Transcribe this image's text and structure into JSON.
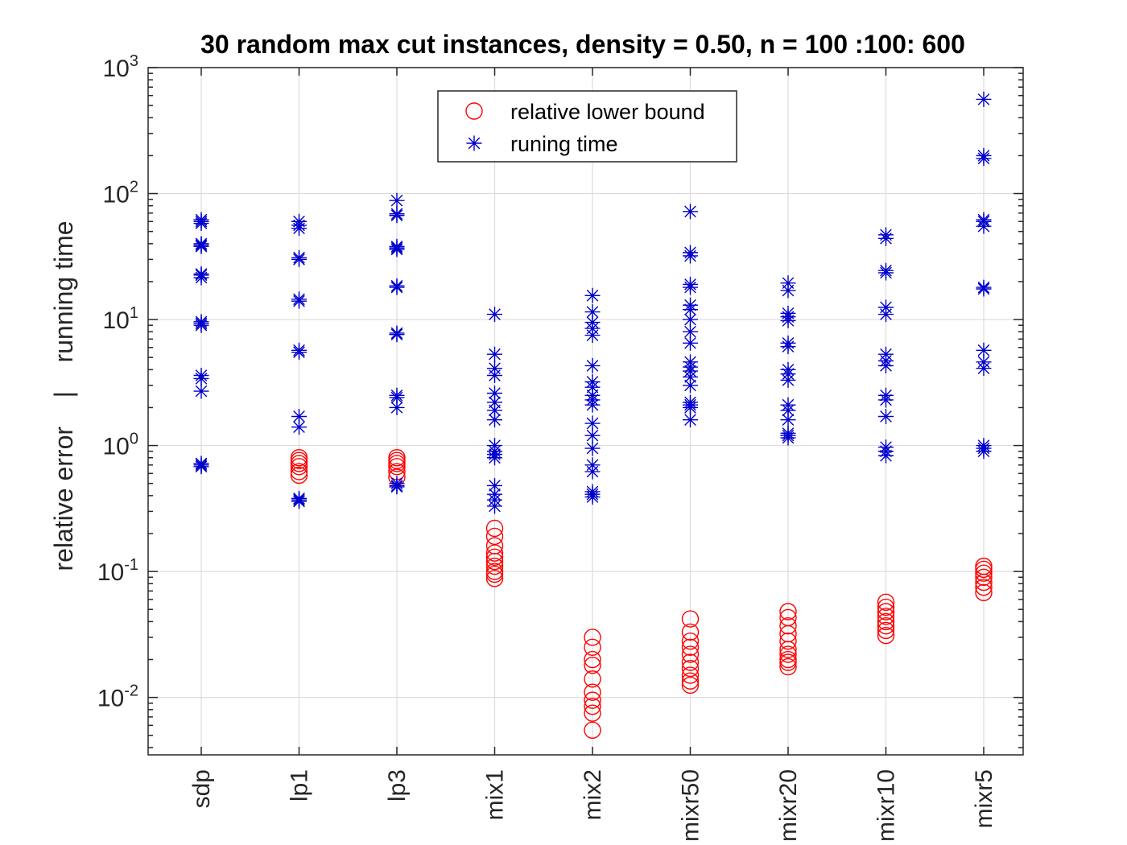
{
  "chart_data": {
    "type": "scatter",
    "title": "30 random max cut instances, density = 0.50, n = 100 :100: 600",
    "ylabel": "relative error    |    running time",
    "xlabel": "",
    "yscale": "log",
    "ylim": [
      0.0035,
      1000
    ],
    "yticks": [
      {
        "value": 0.01,
        "base": "10",
        "exp": "-2"
      },
      {
        "value": 0.1,
        "base": "10",
        "exp": "-1"
      },
      {
        "value": 1,
        "base": "10",
        "exp": "0"
      },
      {
        "value": 10,
        "base": "10",
        "exp": "1"
      },
      {
        "value": 100,
        "base": "10",
        "exp": "2"
      },
      {
        "value": 1000,
        "base": "10",
        "exp": "3"
      }
    ],
    "grid": true,
    "legend_position": "top-center",
    "categories": [
      "sdp",
      "lp1",
      "lp3",
      "mix1",
      "mix2",
      "mixr50",
      "mixr20",
      "mixr10",
      "mixr5"
    ],
    "series": [
      {
        "name": "relative lower bound",
        "marker": "circle",
        "color": "#ff0000",
        "values": [
          [],
          [
            0.58,
            0.62,
            0.68,
            0.72,
            0.76,
            0.8
          ],
          [
            0.56,
            0.62,
            0.68,
            0.72,
            0.76,
            0.8
          ],
          [
            0.088,
            0.095,
            0.1,
            0.11,
            0.12,
            0.13,
            0.14,
            0.16,
            0.19,
            0.22
          ],
          [
            0.0055,
            0.0075,
            0.0085,
            0.0095,
            0.011,
            0.014,
            0.018,
            0.02,
            0.025,
            0.03
          ],
          [
            0.0125,
            0.0135,
            0.015,
            0.017,
            0.019,
            0.022,
            0.025,
            0.028,
            0.033,
            0.042
          ],
          [
            0.0175,
            0.019,
            0.02,
            0.022,
            0.024,
            0.028,
            0.032,
            0.037,
            0.043,
            0.048
          ],
          [
            0.031,
            0.034,
            0.037,
            0.04,
            0.044,
            0.048,
            0.052,
            0.057
          ],
          [
            0.068,
            0.075,
            0.082,
            0.09,
            0.097,
            0.104,
            0.11
          ]
        ]
      },
      {
        "name": "runing time",
        "marker": "asterisk",
        "color": "#0000cd",
        "values": [
          [
            0.68,
            0.7,
            0.72,
            2.7,
            3.4,
            3.6,
            9.0,
            9.3,
            9.6,
            21.5,
            22.5,
            23.0,
            38,
            39,
            40,
            58,
            60,
            62
          ],
          [
            0.36,
            0.37,
            0.38,
            1.4,
            1.7,
            5.5,
            5.7,
            14.0,
            14.5,
            30,
            31,
            53,
            56,
            60
          ],
          [
            0.47,
            0.48,
            0.5,
            2.0,
            2.4,
            2.5,
            7.6,
            7.8,
            18.0,
            18.5,
            36,
            37,
            38,
            67,
            69,
            88
          ],
          [
            0.33,
            0.37,
            0.41,
            0.48,
            0.8,
            0.85,
            0.9,
            1.0,
            1.6,
            1.9,
            2.2,
            2.6,
            3.6,
            4.1,
            5.3,
            11.0
          ],
          [
            0.39,
            0.41,
            0.43,
            0.62,
            0.7,
            0.95,
            1.2,
            1.5,
            2.1,
            2.3,
            2.5,
            2.9,
            3.2,
            4.3,
            7.5,
            8.5,
            9.5,
            11.5,
            15.5
          ],
          [
            1.6,
            2.0,
            2.1,
            2.2,
            3.0,
            3.5,
            3.9,
            4.2,
            4.6,
            6.5,
            8.0,
            10,
            12,
            13,
            18,
            19,
            32,
            34,
            72
          ],
          [
            1.15,
            1.2,
            1.25,
            1.6,
            1.9,
            2.1,
            3.3,
            3.7,
            4.0,
            6.1,
            6.5,
            9.8,
            10.5,
            11.2,
            17,
            19.5
          ],
          [
            0.83,
            0.9,
            0.97,
            1.7,
            2.3,
            2.5,
            4.3,
            4.7,
            5.3,
            11.0,
            12.5,
            23.5,
            24.5,
            44,
            47
          ],
          [
            0.9,
            0.95,
            1.0,
            4.1,
            4.6,
            5.7,
            17.5,
            18.0,
            55,
            60,
            62,
            190,
            200,
            560
          ]
        ]
      }
    ]
  }
}
